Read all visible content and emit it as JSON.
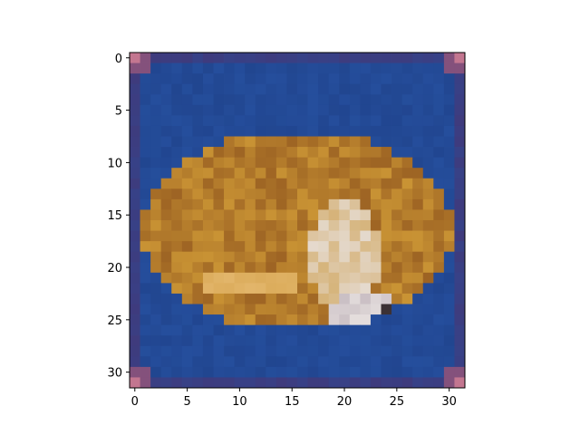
{
  "image": {
    "description_icon": "pixelated-image",
    "x_ticks": [
      "0",
      "5",
      "10",
      "15",
      "20",
      "25",
      "30"
    ],
    "y_ticks": [
      "0",
      "5",
      "10",
      "15",
      "20",
      "25",
      "30"
    ],
    "colors": {
      "background_blue": "#26509f",
      "background_blue_dark": "#1e3f86",
      "border_purple": "#4c2f6a",
      "corner_pink": "#c97a92",
      "object_orange": "#c99334",
      "object_dark": "#8a4f1c",
      "highlight_white": "#e8e2e0"
    }
  }
}
